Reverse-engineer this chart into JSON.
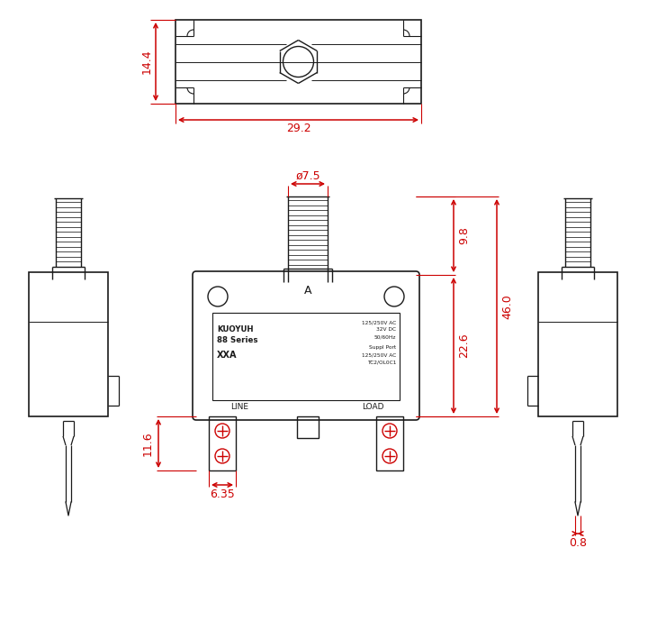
{
  "bg_color": "#ffffff",
  "line_color": "#1a1a1a",
  "dim_color": "#cc0000",
  "fig_width": 7.2,
  "fig_height": 6.89,
  "label_top_width": "29.2",
  "label_top_height": "14.4",
  "label_dia": "ø7.5",
  "label_9_8": "9.8",
  "label_22_6": "22.6",
  "label_46": "46.0",
  "label_11_6": "11.6",
  "label_6_35": "6.35",
  "label_0_8": "0.8",
  "label_line": "LINE",
  "label_load": "LOAD",
  "label_A": "A",
  "label_brand": "KUOYUH",
  "label_series": "88 Series",
  "label_xxa": "XXA",
  "label_spec1": "125/250V AC",
  "label_spec2": "32V DC",
  "label_spec3": "50/60Hz",
  "label_suppl": "Suppl Port",
  "label_spec4": "125/250V AC",
  "label_spec5": "TC2/OL0C1"
}
